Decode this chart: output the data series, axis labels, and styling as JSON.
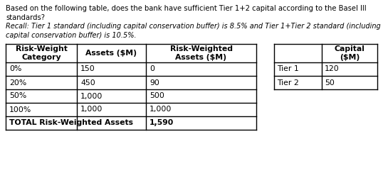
{
  "line1": "Based on the following table, does the bank have sufficient Tier 1+2 capital according to the Basel III",
  "line2": "standards?",
  "line3": "Recall: Tier 1 standard (including capital conservation buffer) is 8.5% and Tier 1+Tier 2 standard (including",
  "line4": "capital conservation buffer) is 10.5%.",
  "main_headers": [
    "Risk-Weight\nCategory",
    "Assets ($M)",
    "Risk-Weighted\nAssets ($M)"
  ],
  "main_rows": [
    [
      "0%",
      "150",
      "0"
    ],
    [
      "20%",
      "450",
      "90"
    ],
    [
      "50%",
      "1,000",
      "500"
    ],
    [
      "100%",
      "1,000",
      "1,000"
    ]
  ],
  "total_label": "TOTAL Risk-Weighted Assets",
  "total_value": "1,590",
  "cap_header_col2": "Capital\n($M)",
  "cap_rows": [
    [
      "Tier 1",
      "120"
    ],
    [
      "Tier 2",
      "50"
    ]
  ],
  "bg_color": "#ffffff",
  "text_color": "#000000"
}
